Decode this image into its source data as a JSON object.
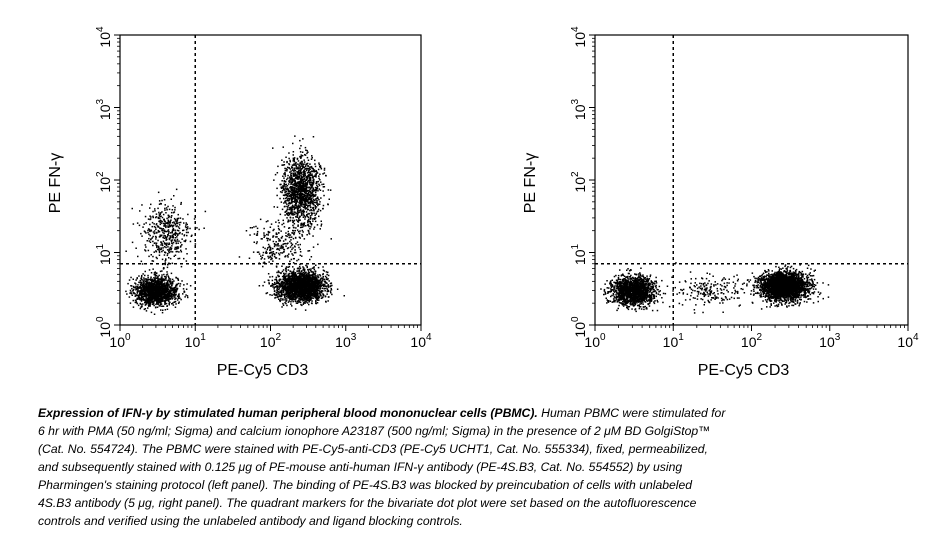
{
  "chart_data": [
    {
      "type": "scatter",
      "panel": "left",
      "xlabel": "PE-Cy5 CD3",
      "ylabel": "PE FN-γ",
      "x_scale": "log",
      "y_scale": "log",
      "xlim": [
        1,
        10000
      ],
      "ylim": [
        1,
        10000
      ],
      "x_ticks": [
        {
          "base": "10",
          "exp": "0",
          "value": 1
        },
        {
          "base": "10",
          "exp": "1",
          "value": 10
        },
        {
          "base": "10",
          "exp": "2",
          "value": 100
        },
        {
          "base": "10",
          "exp": "3",
          "value": 1000
        },
        {
          "base": "10",
          "exp": "4",
          "value": 10000
        }
      ],
      "y_ticks": [
        {
          "base": "10",
          "exp": "0",
          "value": 1
        },
        {
          "base": "10",
          "exp": "1",
          "value": 10
        },
        {
          "base": "10",
          "exp": "2",
          "value": 100
        },
        {
          "base": "10",
          "exp": "3",
          "value": 1000
        },
        {
          "base": "10",
          "exp": "4",
          "value": 10000
        }
      ],
      "quadrant_markers": {
        "x": 10,
        "y": 7
      },
      "populations": [
        {
          "x_center": 3,
          "y_center": 3,
          "x_spread": 1.8,
          "y_spread": 1.5,
          "count": 1500
        },
        {
          "x_center": 4,
          "y_center": 18,
          "x_spread": 2.0,
          "y_spread": 2.6,
          "count": 450
        },
        {
          "x_center": 250,
          "y_center": 3.5,
          "x_spread": 1.9,
          "y_spread": 1.5,
          "count": 2300
        },
        {
          "x_center": 250,
          "y_center": 70,
          "x_spread": 1.7,
          "y_spread": 2.8,
          "count": 1300
        },
        {
          "x_center": 120,
          "y_center": 12,
          "x_spread": 2.2,
          "y_spread": 2.0,
          "count": 250
        }
      ]
    },
    {
      "type": "scatter",
      "panel": "right",
      "xlabel": "PE-Cy5 CD3",
      "ylabel": "PE FN-γ",
      "x_scale": "log",
      "y_scale": "log",
      "xlim": [
        1,
        10000
      ],
      "ylim": [
        1,
        10000
      ],
      "x_ticks": [
        {
          "base": "10",
          "exp": "0",
          "value": 1
        },
        {
          "base": "10",
          "exp": "1",
          "value": 10
        },
        {
          "base": "10",
          "exp": "2",
          "value": 100
        },
        {
          "base": "10",
          "exp": "3",
          "value": 1000
        },
        {
          "base": "10",
          "exp": "4",
          "value": 10000
        }
      ],
      "y_ticks": [
        {
          "base": "10",
          "exp": "0",
          "value": 1
        },
        {
          "base": "10",
          "exp": "1",
          "value": 10
        },
        {
          "base": "10",
          "exp": "2",
          "value": 100
        },
        {
          "base": "10",
          "exp": "3",
          "value": 1000
        },
        {
          "base": "10",
          "exp": "4",
          "value": 10000
        }
      ],
      "quadrant_markers": {
        "x": 10,
        "y": 7
      },
      "populations": [
        {
          "x_center": 3,
          "y_center": 3,
          "x_spread": 1.8,
          "y_spread": 1.5,
          "count": 1500
        },
        {
          "x_center": 250,
          "y_center": 3.5,
          "x_spread": 1.9,
          "y_spread": 1.5,
          "count": 2600
        },
        {
          "x_center": 30,
          "y_center": 3,
          "x_spread": 2.5,
          "y_spread": 1.6,
          "count": 200
        }
      ]
    }
  ],
  "caption": {
    "title": "Expression of IFN-γ by stimulated human peripheral blood mononuclear cells (PBMC).",
    "lines": [
      "Human PBMC were stimulated for",
      "6 hr with PMA (50 ng/ml; Sigma) and calcium ionophore A23187 (500 ng/ml; Sigma) in the presence of 2 μM BD GolgiStop™",
      "(Cat. No. 554724). The PBMC were stained with PE-Cy5-anti-CD3 (PE-Cy5 UCHT1, Cat. No. 555334), fixed, permeabilized,",
      "and subsequently stained with 0.125 μg of PE-mouse anti-human IFN-γ antibody (PE-4S.B3, Cat. No. 554552) by using",
      "Pharmingen's staining protocol (left panel). The binding of PE-4S.B3 was blocked by preincubation of cells with unlabeled",
      "4S.B3 antibody (5 μg, right panel). The quadrant markers for the bivariate dot plot were set based on the autofluorescence",
      "controls and verified using the unlabeled antibody and ligand blocking controls."
    ]
  }
}
